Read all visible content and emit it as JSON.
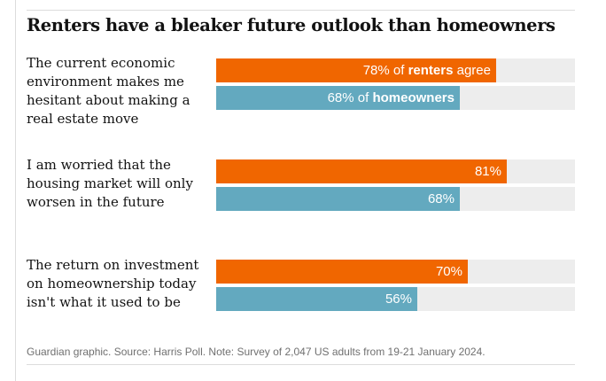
{
  "title": "Renters have a bleaker future outlook than homeowners",
  "colors": {
    "renters": "#f06600",
    "homeowners": "#63a9bf",
    "track": "#ededed"
  },
  "chart_data": {
    "type": "bar",
    "orientation": "horizontal",
    "title": "Renters have a bleaker future outlook than homeowners",
    "unit": "%",
    "xlim": [
      0,
      100
    ],
    "categories": [
      "The current economic environment makes me hesitant about making a real estate move",
      "I am worried that the housing market will only worsen in the future",
      "The return on investment on homeownership today isn't what it used to be"
    ],
    "series": [
      {
        "name": "renters",
        "values": [
          78,
          81,
          70
        ]
      },
      {
        "name": "homeowners",
        "values": [
          68,
          68,
          56
        ]
      }
    ],
    "data_labels": {
      "renters": [
        "78%",
        "81%",
        "70%"
      ],
      "homeowners": [
        "68%",
        "68%",
        "56%"
      ]
    },
    "first_row_annotations": {
      "renters_prefix": "78% of",
      "renters_name": "renters",
      "renters_suffix": "agree",
      "homeowners_prefix": "68% of",
      "homeowners_name": "homeowners"
    }
  },
  "footnote": "Guardian graphic. Source: Harris Poll. Note: Survey of 2,047 US adults from 19-21 January 2024."
}
